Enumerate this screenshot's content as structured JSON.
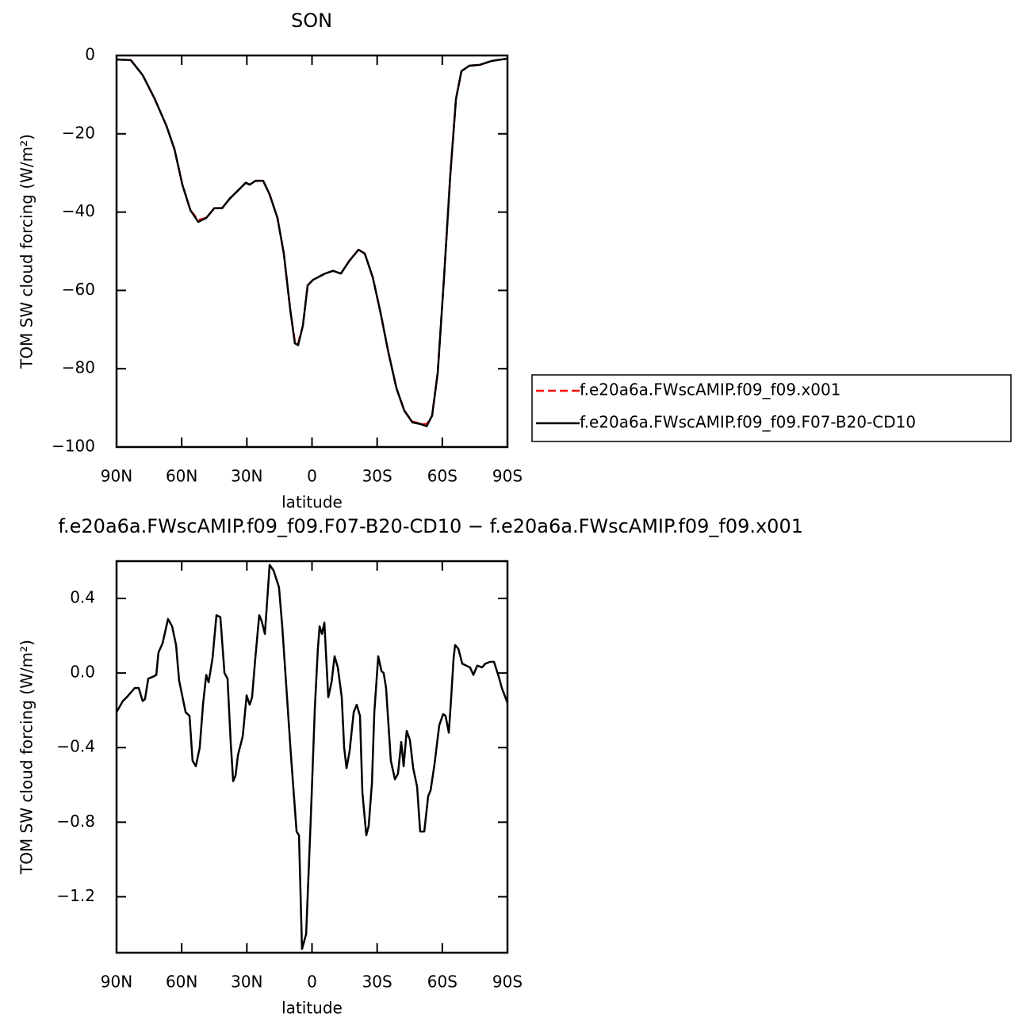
{
  "chart_data": [
    {
      "type": "line",
      "title": "SON",
      "xlabel": "latitude",
      "ylabel": "TOM SW cloud forcing (W/m²)",
      "xlim": [
        90,
        -90
      ],
      "ylim": [
        -100,
        0
      ],
      "xticks": [
        {
          "value": 90,
          "label": "90N"
        },
        {
          "value": 60,
          "label": "60N"
        },
        {
          "value": 30,
          "label": "30N"
        },
        0,
        {
          "value": -30,
          "label": "30S"
        },
        {
          "value": -60,
          "label": "60S"
        },
        {
          "value": -90,
          "label": "90S"
        }
      ],
      "yticks": [
        0,
        {
          "value": -20,
          "label": "−20"
        },
        {
          "value": -40,
          "label": "−40"
        },
        {
          "value": -60,
          "label": "−60"
        },
        {
          "value": -80,
          "label": "−80"
        },
        {
          "value": -100,
          "label": "−100"
        }
      ],
      "legend": "right",
      "x": [
        90,
        83.4,
        78,
        72.5,
        67,
        63.3,
        59.7,
        56,
        52.4,
        48.7,
        45,
        41.4,
        37.8,
        34.1,
        30.5,
        28.7,
        26,
        22.5,
        19.5,
        15.9,
        13,
        10,
        7.9,
        6.4,
        4.2,
        2,
        -0.5,
        -6,
        -9.7,
        -13.3,
        -17,
        -21.4,
        -24.3,
        -28,
        -31.6,
        -35.2,
        -38.9,
        -42.5,
        -46.2,
        -49.8,
        -52.8,
        -55.3,
        -57.9,
        -60.8,
        -63.7,
        -66.3,
        -68.8,
        -72.5,
        -77.2,
        -82.7,
        -90
      ],
      "series": [
        {
          "name": "f.e20a6a.FWscAMIP.f09_f09.x001",
          "color": "#ff0000",
          "dashed": true,
          "values": [
            -1,
            -1.2,
            -5,
            -11,
            -18,
            -24,
            -33,
            -39.5,
            -42,
            -41.5,
            -39,
            -39,
            -36.5,
            -34.5,
            -32.5,
            -33,
            -32,
            -32,
            -35.5,
            -41.5,
            -50.5,
            -65,
            -73,
            -73.5,
            -69,
            -58.7,
            -57.3,
            -55.7,
            -55,
            -55.7,
            -52.6,
            -49.6,
            -50.6,
            -56.7,
            -65.8,
            -75.9,
            -85,
            -90.7,
            -93.5,
            -94,
            -94.2,
            -92,
            -81,
            -56.7,
            -30.4,
            -11.1,
            -4,
            -2.6,
            -2.4,
            -1.4,
            -0.8
          ]
        },
        {
          "name": "f.e20a6a.FWscAMIP.f09_f09.F07-B20-CD10",
          "color": "#000000",
          "dashed": false,
          "values": [
            -1,
            -1.2,
            -5,
            -11,
            -18,
            -24,
            -33,
            -39.5,
            -42.5,
            -41.5,
            -39,
            -39,
            -36.5,
            -34.5,
            -32.5,
            -33,
            -32,
            -32,
            -35.5,
            -41.5,
            -50.5,
            -65,
            -73.5,
            -74,
            -69,
            -58.7,
            -57.3,
            -55.7,
            -55,
            -55.7,
            -52.6,
            -49.6,
            -50.6,
            -56.7,
            -65.8,
            -75.9,
            -85,
            -90.7,
            -93.7,
            -94.1,
            -94.7,
            -92,
            -81,
            -56.7,
            -30.4,
            -11.1,
            -4,
            -2.6,
            -2.4,
            -1.4,
            -0.8
          ]
        }
      ]
    },
    {
      "type": "line",
      "title": "f.e20a6a.FWscAMIP.f09_f09.F07-B20-CD10 − f.e20a6a.FWscAMIP.f09_f09.x001",
      "xlabel": "latitude",
      "ylabel": "TOM SW cloud forcing (W/m²)",
      "xlim": [
        90,
        -90
      ],
      "ylim": [
        -1.5,
        0.6
      ],
      "xticks": [
        {
          "value": 90,
          "label": "90N"
        },
        {
          "value": 60,
          "label": "60N"
        },
        {
          "value": 30,
          "label": "30N"
        },
        0,
        {
          "value": -30,
          "label": "30S"
        },
        {
          "value": -60,
          "label": "60S"
        },
        {
          "value": -90,
          "label": "90S"
        }
      ],
      "yticks": [
        0.4,
        {
          "value": 0,
          "label": "0.0"
        },
        {
          "value": -0.4,
          "label": "−0.4"
        },
        {
          "value": -0.8,
          "label": "−0.8"
        },
        {
          "value": -1.2,
          "label": "−1.2"
        }
      ],
      "x": [
        90,
        87.1,
        85.3,
        81.6,
        79.8,
        78,
        76.9,
        75.4,
        73.2,
        71.7,
        70.7,
        68.8,
        66.3,
        64.4,
        62.6,
        61.2,
        58.2,
        56.4,
        55,
        53.5,
        51.7,
        50.2,
        48.7,
        47.6,
        45.8,
        44,
        42.2,
        40.3,
        38.9,
        37.4,
        36.3,
        35.2,
        34.1,
        31.9,
        30.1,
        28.7,
        27.6,
        26.1,
        24.3,
        23.2,
        21.7,
        19.5,
        17.7,
        15.2,
        13.7,
        11.5,
        9.7,
        7.1,
        6,
        4.6,
        2.7,
        0.5,
        -1.3,
        -2.7,
        -3.5,
        -4.6,
        -5.7,
        -7.5,
        -9,
        -10.4,
        -11.9,
        -13.7,
        -14.8,
        -15.9,
        -17.3,
        -19.2,
        -20.6,
        -22.1,
        -23.2,
        -25,
        -26.1,
        -27.6,
        -28.7,
        -30.5,
        -32,
        -33,
        -34.1,
        -36.3,
        -38.2,
        -39.6,
        -41.1,
        -42.2,
        -43.6,
        -45.1,
        -46.6,
        -48.4,
        -49.8,
        -51.7,
        -53.5,
        -54.6,
        -56.4,
        -58.6,
        -60.4,
        -61.5,
        -63,
        -64.1,
        -65.2,
        -65.9,
        -67.4,
        -69.2,
        -71,
        -72.8,
        -74.3,
        -76.1,
        -78.3,
        -79.8,
        -82,
        -83.8,
        -86,
        -87.4,
        -90
      ],
      "series": [
        {
          "color": "#000000",
          "dashed": false,
          "values": [
            -0.21,
            -0.15,
            -0.13,
            -0.08,
            -0.08,
            -0.15,
            -0.14,
            -0.03,
            -0.02,
            -0.01,
            0.11,
            0.16,
            0.29,
            0.25,
            0.15,
            -0.04,
            -0.21,
            -0.23,
            -0.47,
            -0.5,
            -0.4,
            -0.17,
            -0.01,
            -0.05,
            0.08,
            0.31,
            0.3,
            0,
            -0.03,
            -0.38,
            -0.58,
            -0.55,
            -0.44,
            -0.34,
            -0.12,
            -0.17,
            -0.13,
            0.08,
            0.31,
            0.28,
            0.21,
            0.58,
            0.55,
            0.46,
            0.25,
            -0.13,
            -0.44,
            -0.85,
            -0.87,
            -1.48,
            -1.4,
            -0.76,
            -0.19,
            0.13,
            0.25,
            0.21,
            0.27,
            -0.13,
            -0.05,
            0.09,
            0.03,
            -0.13,
            -0.4,
            -0.51,
            -0.42,
            -0.21,
            -0.17,
            -0.23,
            -0.64,
            -0.87,
            -0.82,
            -0.59,
            -0.21,
            0.09,
            0.01,
            0,
            -0.08,
            -0.47,
            -0.57,
            -0.54,
            -0.37,
            -0.5,
            -0.31,
            -0.36,
            -0.51,
            -0.61,
            -0.85,
            -0.85,
            -0.66,
            -0.63,
            -0.49,
            -0.28,
            -0.22,
            -0.23,
            -0.32,
            -0.13,
            0.08,
            0.15,
            0.13,
            0.05,
            0.04,
            0.03,
            -0.01,
            0.04,
            0.03,
            0.05,
            0.06,
            0.06,
            -0.02,
            -0.08,
            -0.16
          ]
        }
      ]
    }
  ]
}
